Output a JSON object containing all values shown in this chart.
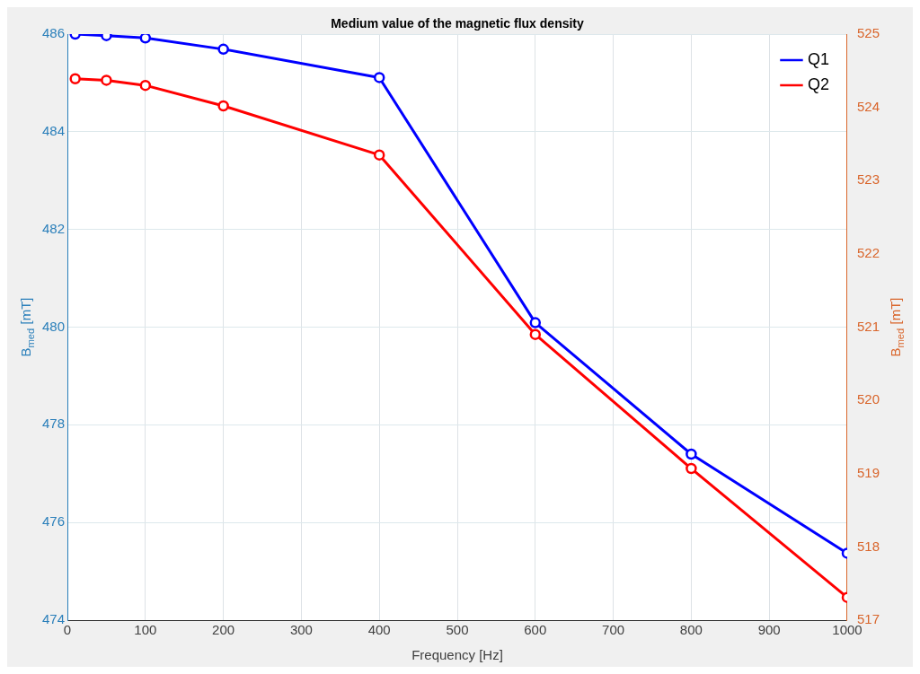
{
  "chart_data": {
    "type": "line",
    "title": "Medium value of the magnetic flux density",
    "xlabel": "Frequency [Hz]",
    "ylabel": "B$_{med}$ [mT]",
    "y2label": "B$_{med}$ [mT]",
    "x": [
      10,
      50,
      100,
      200,
      400,
      600,
      800,
      1000
    ],
    "series": [
      {
        "name": "Q1",
        "color": "#0000ff",
        "values": [
          486.0,
          485.97,
          485.92,
          485.69,
          485.11,
          480.09,
          477.4,
          475.37
        ]
      },
      {
        "name": "Q2",
        "color": "#ff0000",
        "axis": "y2",
        "values": [
          524.39,
          524.37,
          524.3,
          524.02,
          523.35,
          520.9,
          519.07,
          517.31
        ]
      }
    ],
    "xlim": [
      0,
      1000
    ],
    "xticks": [
      0,
      100,
      200,
      300,
      400,
      500,
      600,
      700,
      800,
      900,
      1000
    ],
    "ylim": [
      474,
      486
    ],
    "yticks": [
      474,
      476,
      478,
      480,
      482,
      484,
      486
    ],
    "y2lim": [
      517,
      525
    ],
    "y2ticks": [
      517,
      518,
      519,
      520,
      521,
      522,
      523,
      524,
      525
    ],
    "grid": true,
    "legend": "top right",
    "marker": "circle",
    "line_style": "solid"
  }
}
